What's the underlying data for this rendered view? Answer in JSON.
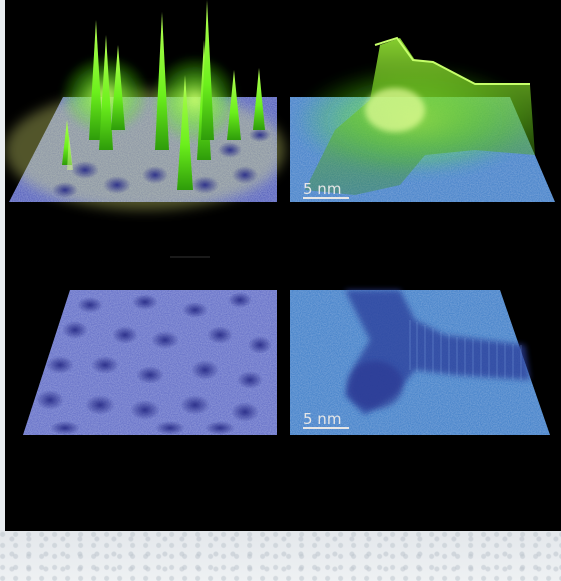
{
  "panels": [
    {
      "id": "top-left",
      "description_hidden": true
    },
    {
      "id": "top-right",
      "scale_bar": "5 nm"
    },
    {
      "id": "bottom-left"
    },
    {
      "id": "bottom-right",
      "scale_bar": "5 nm"
    }
  ],
  "colors": {
    "background": "#000000",
    "surface_blue": "#3b5bb0",
    "surface_cyan": "#3f86c8",
    "glow_green": "#8cff3a",
    "page_bg": "#e9edf0"
  }
}
